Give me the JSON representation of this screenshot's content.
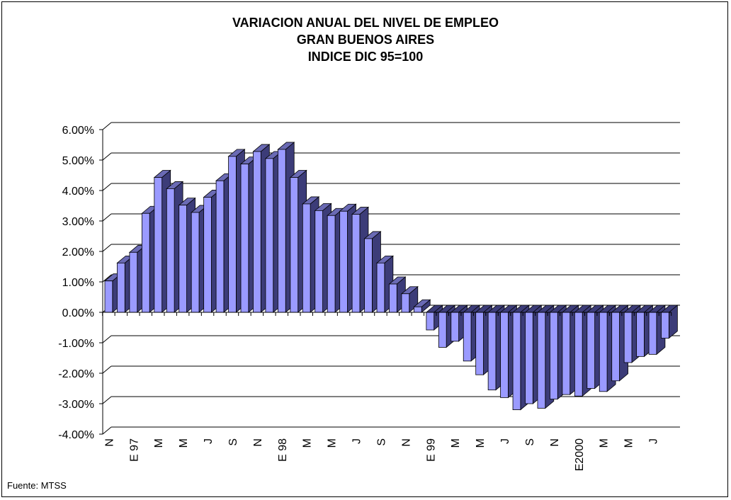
{
  "chart_data": {
    "type": "bar",
    "title_lines": [
      "VARIACION ANUAL DEL NIVEL DE EMPLEO",
      "GRAN BUENOS AIRES",
      "INDICE DIC 95=100"
    ],
    "source": "Fuente: MTSS",
    "ylim": [
      -0.04,
      0.06
    ],
    "yticks": [
      "6.00%",
      "5.00%",
      "4.00%",
      "3.00%",
      "2.00%",
      "1.00%",
      "0.00%",
      "-1.00%",
      "-2.00%",
      "-3.00%",
      "-4.00%"
    ],
    "x_labels": [
      {
        "index": 0,
        "label": "N"
      },
      {
        "index": 2,
        "label": "E 97"
      },
      {
        "index": 4,
        "label": "M"
      },
      {
        "index": 6,
        "label": "M"
      },
      {
        "index": 8,
        "label": "J"
      },
      {
        "index": 10,
        "label": "S"
      },
      {
        "index": 12,
        "label": "N"
      },
      {
        "index": 14,
        "label": "E 98"
      },
      {
        "index": 16,
        "label": "M"
      },
      {
        "index": 18,
        "label": "M"
      },
      {
        "index": 20,
        "label": "J"
      },
      {
        "index": 22,
        "label": "S"
      },
      {
        "index": 24,
        "label": "N"
      },
      {
        "index": 26,
        "label": "E 99"
      },
      {
        "index": 28,
        "label": "M"
      },
      {
        "index": 30,
        "label": "M"
      },
      {
        "index": 32,
        "label": "J"
      },
      {
        "index": 34,
        "label": "S"
      },
      {
        "index": 36,
        "label": "N"
      },
      {
        "index": 38,
        "label": "E2000"
      },
      {
        "index": 40,
        "label": "M"
      },
      {
        "index": 42,
        "label": "M"
      },
      {
        "index": 44,
        "label": "J"
      }
    ],
    "values": [
      0.0103,
      0.0162,
      0.0197,
      0.0325,
      0.0443,
      0.0406,
      0.0352,
      0.0328,
      0.0378,
      0.0432,
      0.0512,
      0.0487,
      0.0528,
      0.0505,
      0.0535,
      0.0443,
      0.0356,
      0.0334,
      0.0318,
      0.0332,
      0.0322,
      0.0242,
      0.0162,
      0.0093,
      0.0061,
      0.0018,
      -0.0058,
      -0.0115,
      -0.0095,
      -0.016,
      -0.0205,
      -0.0255,
      -0.028,
      -0.032,
      -0.03,
      -0.0315,
      -0.0285,
      -0.027,
      -0.0275,
      -0.025,
      -0.026,
      -0.0225,
      -0.0165,
      -0.0145,
      -0.0138,
      -0.0085
    ],
    "colors": {
      "front": "#9a9aff",
      "side": "#3c3c78",
      "top": "#6a6ab4",
      "grid": "#000000"
    }
  }
}
